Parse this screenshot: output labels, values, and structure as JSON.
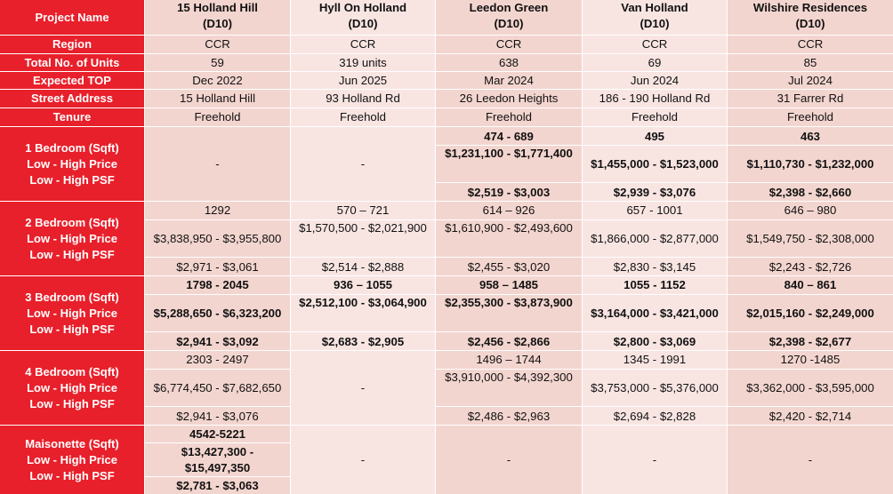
{
  "projects": [
    {
      "name": "15 Holland Hill",
      "district": "(D10)",
      "region": "CCR",
      "units": "59",
      "top": "Dec 2022",
      "address": "15 Holland Hill",
      "tenure": "Freehold"
    },
    {
      "name": "Hyll On Holland",
      "district": "(D10)",
      "region": "CCR",
      "units": "319 units",
      "top": "Jun 2025",
      "address": "93 Holland Rd",
      "tenure": "Freehold"
    },
    {
      "name": "Leedon Green",
      "district": "(D10)",
      "region": "CCR",
      "units": "638",
      "top": "Mar 2024",
      "address": "26 Leedon Heights",
      "tenure": "Freehold"
    },
    {
      "name": "Van Holland",
      "district": "(D10)",
      "region": "CCR",
      "units": "69",
      "top": "Jun 2024",
      "address": "186 - 190 Holland Rd",
      "tenure": "Freehold"
    },
    {
      "name": "Wilshire Residences",
      "district": "(D10)",
      "region": "CCR",
      "units": "85",
      "top": "Jul 2024",
      "address": "31 Farrer Rd",
      "tenure": "Freehold"
    }
  ],
  "labels": {
    "project_name": "Project Name",
    "region": "Region",
    "units": "Total No. of Units",
    "top": "Expected TOP",
    "address": "Street Address",
    "tenure": "Tenure",
    "low_high_price": "Low - High Price",
    "low_high_psf": "Low - High PSF",
    "bed1": "1 Bedroom (Sqft)",
    "bed2": "2 Bedroom (Sqft)",
    "bed3": "3 Bedroom (Sqft)",
    "bed4": "4 Bedroom (Sqft)",
    "maisonette": "Maisonette (Sqft)"
  },
  "bed1": {
    "dash": [
      "-",
      "-"
    ],
    "size": [
      "474 - 689",
      "495",
      "463"
    ],
    "price": [
      "$1,231,100 - $1,771,400",
      "$1,455,000 - $1,523,000",
      "$1,110,730 - $1,232,000"
    ],
    "psf": [
      "$2,519 - $3,003",
      "$2,939 - $3,076",
      "$2,398 - $2,660"
    ]
  },
  "bed2": {
    "size": [
      "1292",
      "570 – 721",
      "614 – 926",
      "657 - 1001",
      "646 – 980"
    ],
    "price": [
      "$3,838,950 - $3,955,800",
      "$1,570,500 - $2,021,900",
      "$1,610,900 - $2,493,600",
      "$1,866,000 - $2,877,000",
      "$1,549,750 - $2,308,000"
    ],
    "psf": [
      "$2,971 - $3,061",
      "$2,514 - $2,888",
      "$2,455 - $3,020",
      "$2,830 - $3,145",
      "$2,243 - $2,726"
    ]
  },
  "bed3": {
    "size": [
      "1798 - 2045",
      "936 – 1055",
      "958 – 1485",
      "1055 - 1152",
      "840 – 861"
    ],
    "price": [
      "$5,288,650 - $6,323,200",
      "$2,512,100 - $3,064,900",
      "$2,355,300 - $3,873,900",
      "$3,164,000 - $3,421,000",
      "$2,015,160 - $2,249,000"
    ],
    "psf": [
      "$2,941 - $3,092",
      "$2,683 - $2,905",
      "$2,456 - $2,866",
      "$2,800 - $3,069",
      "$2,398 - $2,677"
    ]
  },
  "bed4": {
    "dash": "-",
    "size": [
      "2303 - 2497",
      "1496 – 1744",
      "1345 - 1991",
      "1270 -1485"
    ],
    "price": [
      "$6,774,450 - $7,682,650",
      "$3,910,000 - $4,392,300",
      "$3,753,000 - $5,376,000",
      "$3,362,000 - $3,595,000"
    ],
    "psf": [
      "$2,941 - $3,076",
      "$2,486 - $2,963",
      "$2,694 - $2,828",
      "$2,420 - $2,714"
    ]
  },
  "maisonette": {
    "size": "4542-5221",
    "price_line1": "$13,427,300 -",
    "price_line2": "$15,497,350",
    "psf": "$2,781 - $3,063",
    "dash": [
      "-",
      "-",
      "-",
      "-"
    ]
  }
}
